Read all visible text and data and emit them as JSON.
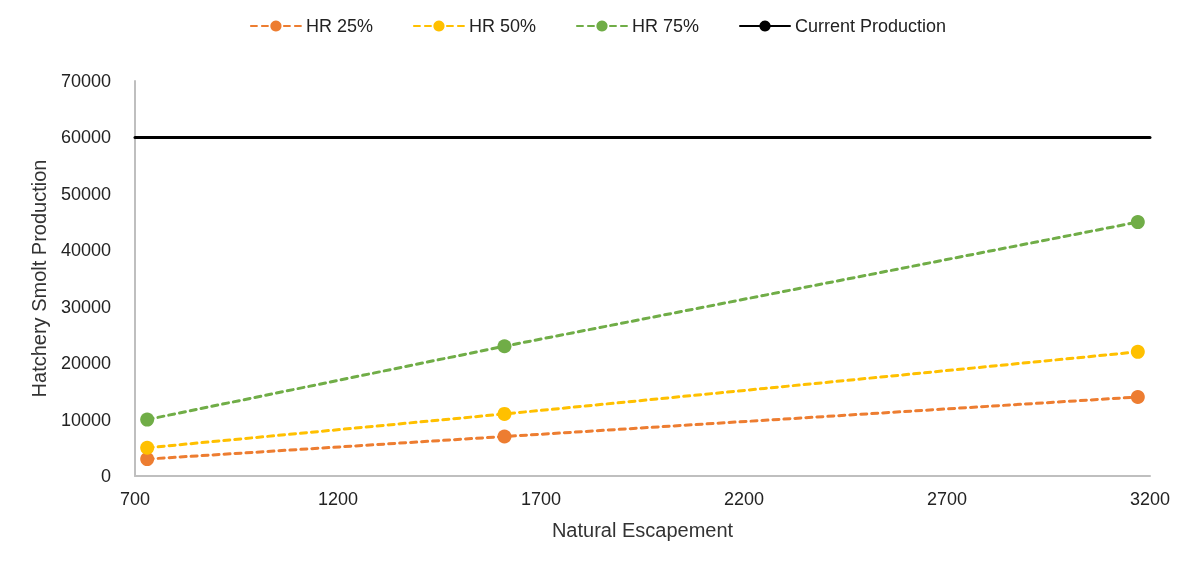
{
  "chart_data": {
    "type": "line",
    "xlabel": "Natural Escapement",
    "ylabel": "Hatchery Smolt Production",
    "xlim": [
      700,
      3200
    ],
    "xticks": [
      700,
      1200,
      1700,
      2200,
      2700,
      3200
    ],
    "ylim": [
      0,
      70000
    ],
    "yticks": [
      0,
      10000,
      20000,
      30000,
      40000,
      50000,
      60000,
      70000
    ],
    "grid": false,
    "legend": "top",
    "marker": "circle",
    "line_style": "dashed",
    "series": [
      {
        "name": "HR 25%",
        "color": "#ed7d31",
        "x": [
          730,
          1610,
          3170
        ],
        "values": [
          3000,
          7000,
          14000
        ]
      },
      {
        "name": "HR 50%",
        "color": "#ffc000",
        "x": [
          730,
          1610,
          3170
        ],
        "values": [
          5000,
          11000,
          22000
        ]
      },
      {
        "name": "HR 75%",
        "color": "#70ad47",
        "x": [
          730,
          1610,
          3170
        ],
        "values": [
          10000,
          23000,
          45000
        ]
      },
      {
        "name": "Current Production",
        "color": "#000000",
        "x": [
          700,
          3200
        ],
        "values": [
          60000,
          60000
        ],
        "marker": "none",
        "line_style": "solid"
      }
    ]
  }
}
